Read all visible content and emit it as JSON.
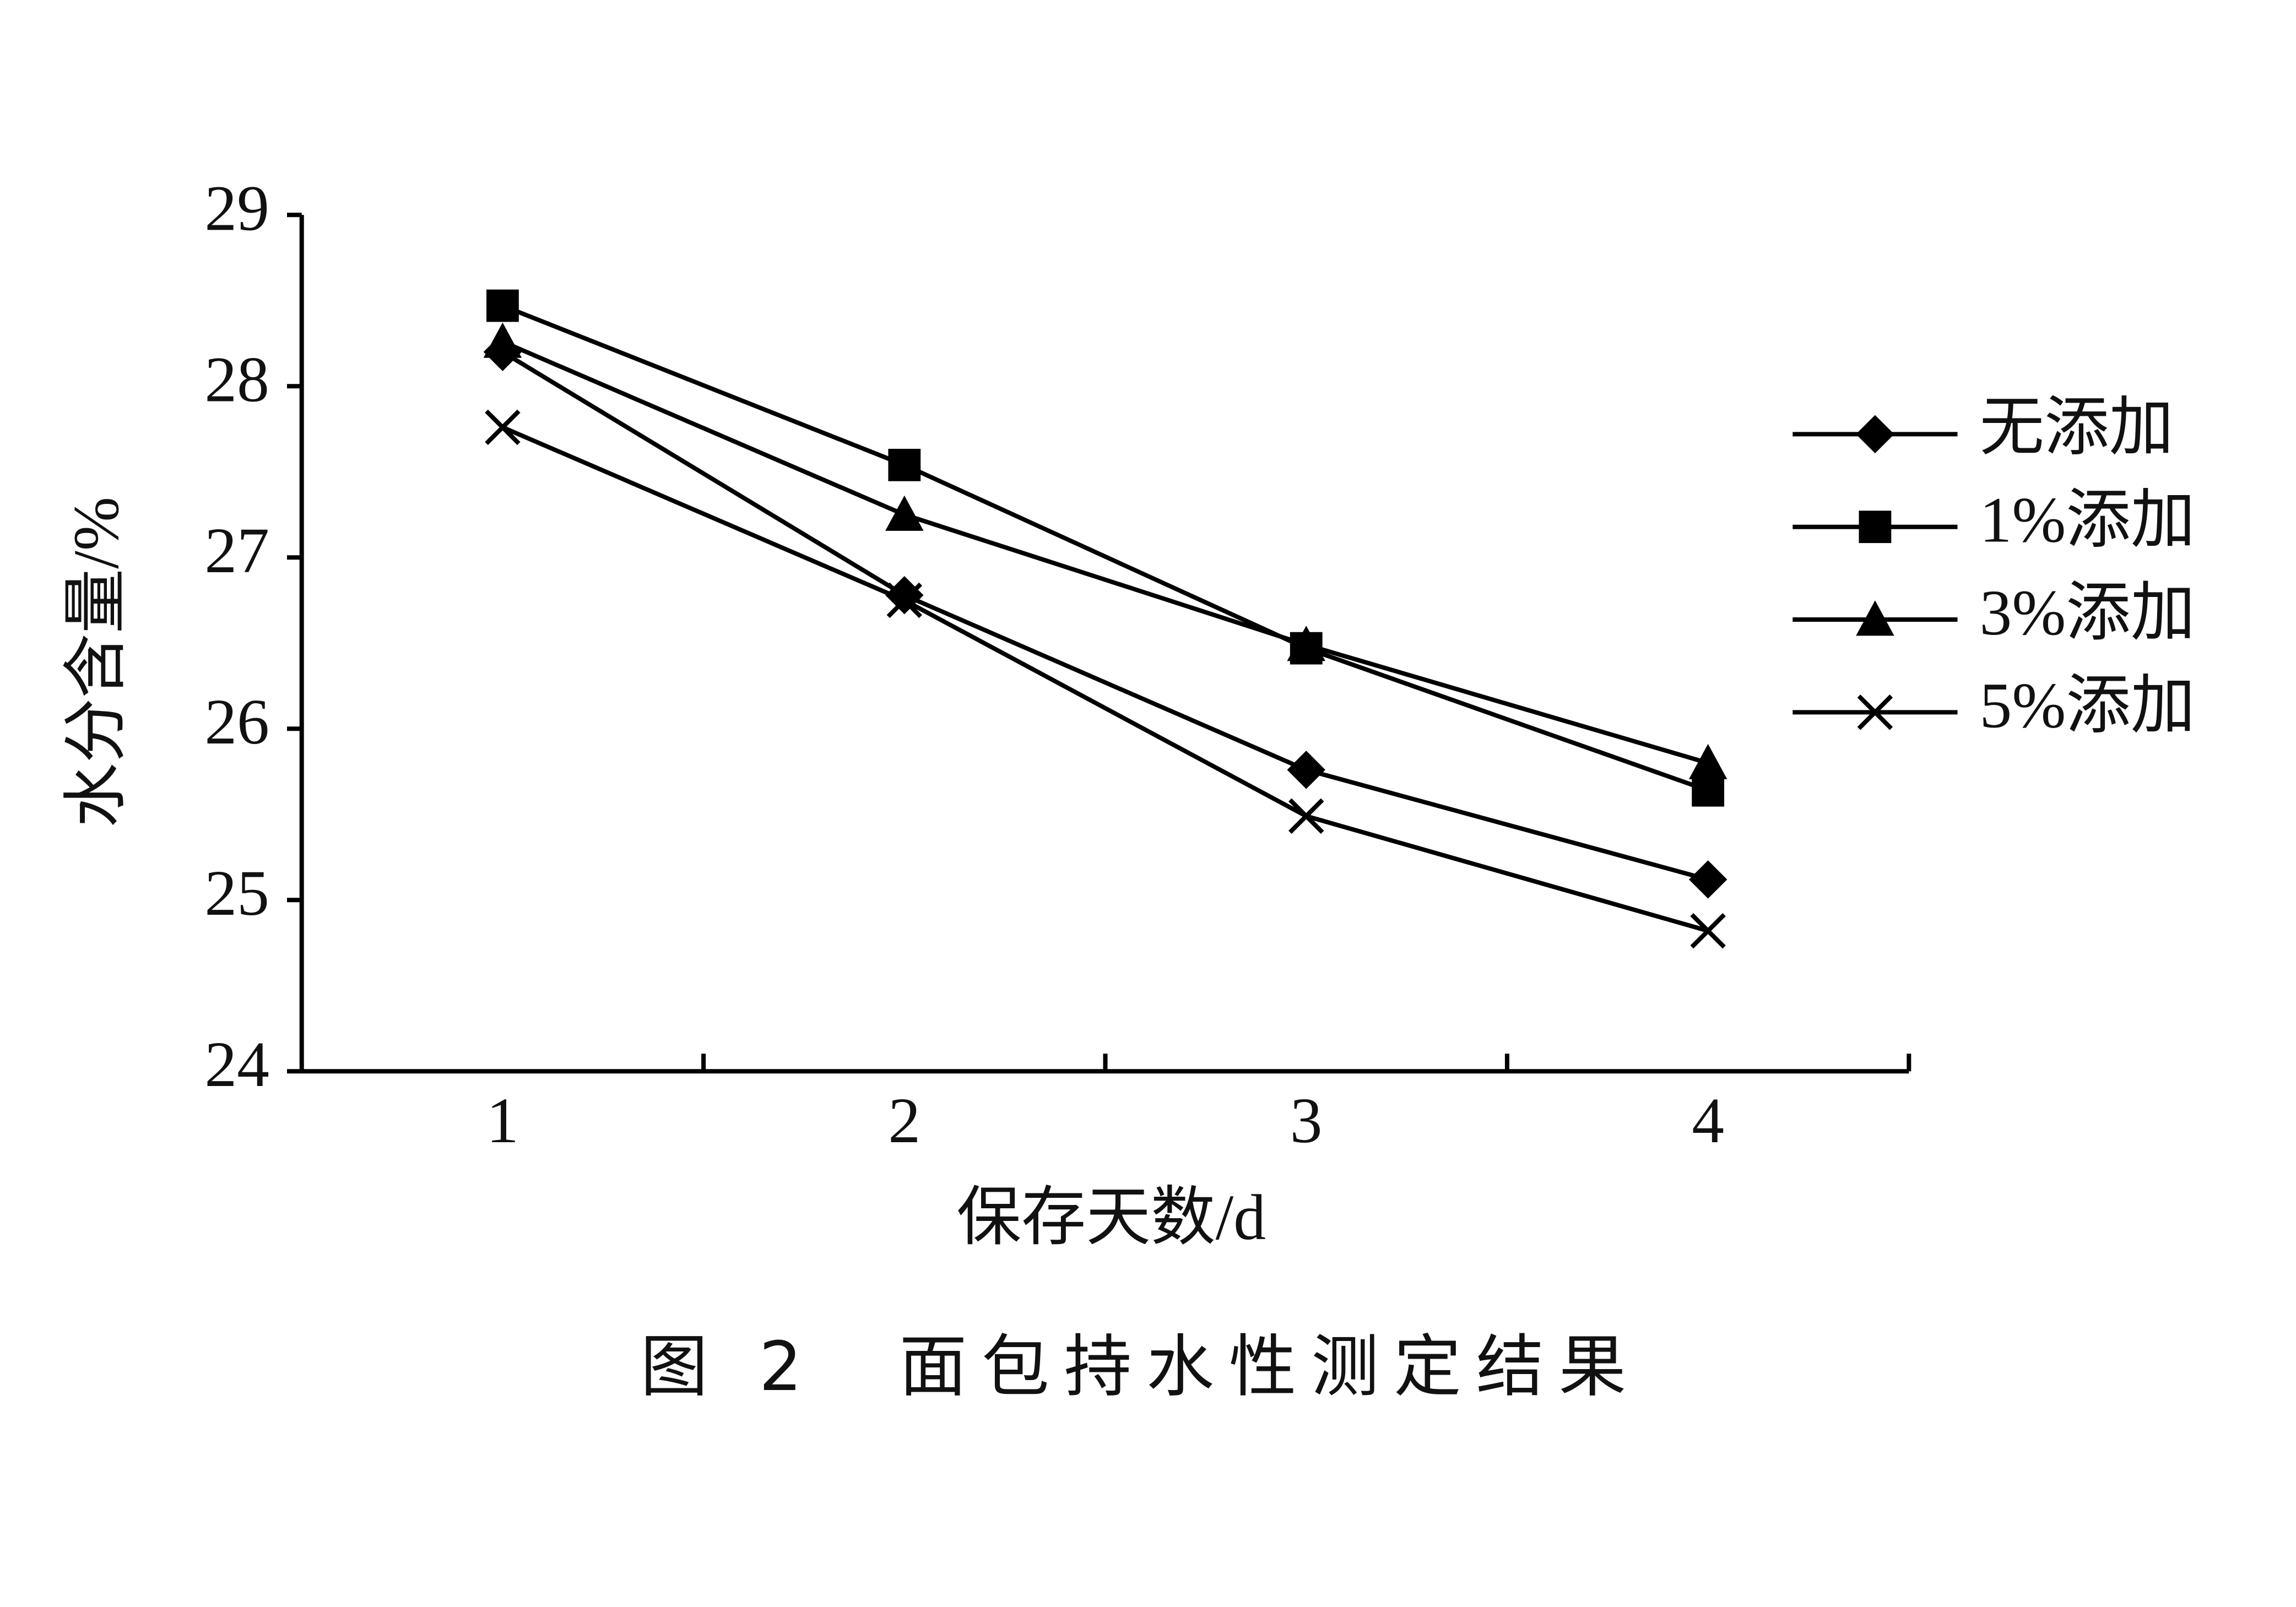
{
  "chart_data": {
    "type": "line",
    "caption": "图 2　面包持水性测定结果",
    "x_label": "保存天数/d",
    "y_label": "水分含量/%",
    "categories": [
      "1",
      "2",
      "3",
      "4"
    ],
    "ylim": [
      24,
      29
    ],
    "yticks": [
      24,
      25,
      26,
      27,
      28,
      29
    ],
    "legend": "right",
    "series": [
      {
        "name": "无添加",
        "color": "#000000",
        "marker": "diamond",
        "values": [
          28.2,
          26.78,
          25.76,
          25.12
        ]
      },
      {
        "name": "1%添加",
        "color": "#000000",
        "marker": "square",
        "values": [
          28.47,
          27.54,
          26.47,
          25.64
        ]
      },
      {
        "name": "3%添加",
        "color": "#000000",
        "marker": "triangle",
        "values": [
          28.26,
          27.25,
          26.49,
          25.8
        ]
      },
      {
        "name": "5%添加",
        "color": "#000000",
        "marker": "cross",
        "values": [
          27.76,
          26.75,
          25.49,
          24.82
        ]
      }
    ]
  }
}
